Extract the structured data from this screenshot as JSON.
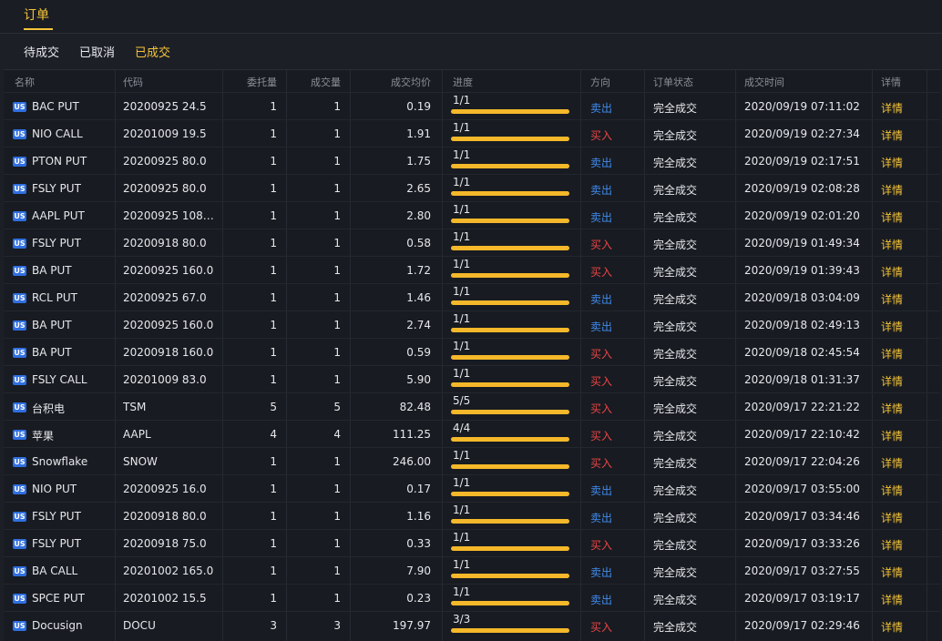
{
  "header": {
    "title": "订单"
  },
  "subtabs": [
    {
      "label": "待成交",
      "active": false
    },
    {
      "label": "已取消",
      "active": false
    },
    {
      "label": "已成交",
      "active": true
    }
  ],
  "table": {
    "columns": [
      "名称",
      "代码",
      "委托量",
      "成交量",
      "成交均价",
      "进度",
      "方向",
      "订单状态",
      "成交时间",
      "详情"
    ],
    "rows": [
      {
        "market": "US",
        "name": "BAC PUT",
        "code": "20200925 24.5",
        "qty": "1",
        "filled": "1",
        "avg": "0.19",
        "progress": "1/1",
        "progress_ratio": 1,
        "dir": "卖出",
        "side": "sell",
        "status": "完全成交",
        "time": "2020/09/19 07:11:02",
        "detail": "详情"
      },
      {
        "market": "US",
        "name": "NIO CALL",
        "code": "20201009 19.5",
        "qty": "1",
        "filled": "1",
        "avg": "1.91",
        "progress": "1/1",
        "progress_ratio": 1,
        "dir": "买入",
        "side": "buy",
        "status": "完全成交",
        "time": "2020/09/19 02:27:34",
        "detail": "详情"
      },
      {
        "market": "US",
        "name": "PTON PUT",
        "code": "20200925 80.0",
        "qty": "1",
        "filled": "1",
        "avg": "1.75",
        "progress": "1/1",
        "progress_ratio": 1,
        "dir": "卖出",
        "side": "sell",
        "status": "完全成交",
        "time": "2020/09/19 02:17:51",
        "detail": "详情"
      },
      {
        "market": "US",
        "name": "FSLY PUT",
        "code": "20200925 80.0",
        "qty": "1",
        "filled": "1",
        "avg": "2.65",
        "progress": "1/1",
        "progress_ratio": 1,
        "dir": "卖出",
        "side": "sell",
        "status": "完全成交",
        "time": "2020/09/19 02:08:28",
        "detail": "详情"
      },
      {
        "market": "US",
        "name": "AAPL PUT",
        "code": "20200925 108....",
        "qty": "1",
        "filled": "1",
        "avg": "2.80",
        "progress": "1/1",
        "progress_ratio": 1,
        "dir": "卖出",
        "side": "sell",
        "status": "完全成交",
        "time": "2020/09/19 02:01:20",
        "detail": "详情"
      },
      {
        "market": "US",
        "name": "FSLY PUT",
        "code": "20200918 80.0",
        "qty": "1",
        "filled": "1",
        "avg": "0.58",
        "progress": "1/1",
        "progress_ratio": 1,
        "dir": "买入",
        "side": "buy",
        "status": "完全成交",
        "time": "2020/09/19 01:49:34",
        "detail": "详情"
      },
      {
        "market": "US",
        "name": "BA PUT",
        "code": "20200925 160.0",
        "qty": "1",
        "filled": "1",
        "avg": "1.72",
        "progress": "1/1",
        "progress_ratio": 1,
        "dir": "买入",
        "side": "buy",
        "status": "完全成交",
        "time": "2020/09/19 01:39:43",
        "detail": "详情"
      },
      {
        "market": "US",
        "name": "RCL PUT",
        "code": "20200925 67.0",
        "qty": "1",
        "filled": "1",
        "avg": "1.46",
        "progress": "1/1",
        "progress_ratio": 1,
        "dir": "卖出",
        "side": "sell",
        "status": "完全成交",
        "time": "2020/09/18 03:04:09",
        "detail": "详情"
      },
      {
        "market": "US",
        "name": "BA PUT",
        "code": "20200925 160.0",
        "qty": "1",
        "filled": "1",
        "avg": "2.74",
        "progress": "1/1",
        "progress_ratio": 1,
        "dir": "卖出",
        "side": "sell",
        "status": "完全成交",
        "time": "2020/09/18 02:49:13",
        "detail": "详情"
      },
      {
        "market": "US",
        "name": "BA PUT",
        "code": "20200918 160.0",
        "qty": "1",
        "filled": "1",
        "avg": "0.59",
        "progress": "1/1",
        "progress_ratio": 1,
        "dir": "买入",
        "side": "buy",
        "status": "完全成交",
        "time": "2020/09/18 02:45:54",
        "detail": "详情"
      },
      {
        "market": "US",
        "name": "FSLY CALL",
        "code": "20201009 83.0",
        "qty": "1",
        "filled": "1",
        "avg": "5.90",
        "progress": "1/1",
        "progress_ratio": 1,
        "dir": "买入",
        "side": "buy",
        "status": "完全成交",
        "time": "2020/09/18 01:31:37",
        "detail": "详情"
      },
      {
        "market": "US",
        "name": "台积电",
        "code": "TSM",
        "qty": "5",
        "filled": "5",
        "avg": "82.48",
        "progress": "5/5",
        "progress_ratio": 1,
        "dir": "买入",
        "side": "buy",
        "status": "完全成交",
        "time": "2020/09/17 22:21:22",
        "detail": "详情"
      },
      {
        "market": "US",
        "name": "苹果",
        "code": "AAPL",
        "qty": "4",
        "filled": "4",
        "avg": "111.25",
        "progress": "4/4",
        "progress_ratio": 1,
        "dir": "买入",
        "side": "buy",
        "status": "完全成交",
        "time": "2020/09/17 22:10:42",
        "detail": "详情"
      },
      {
        "market": "US",
        "name": "Snowflake",
        "code": "SNOW",
        "qty": "1",
        "filled": "1",
        "avg": "246.00",
        "progress": "1/1",
        "progress_ratio": 1,
        "dir": "买入",
        "side": "buy",
        "status": "完全成交",
        "time": "2020/09/17 22:04:26",
        "detail": "详情"
      },
      {
        "market": "US",
        "name": "NIO PUT",
        "code": "20200925 16.0",
        "qty": "1",
        "filled": "1",
        "avg": "0.17",
        "progress": "1/1",
        "progress_ratio": 1,
        "dir": "卖出",
        "side": "sell",
        "status": "完全成交",
        "time": "2020/09/17 03:55:00",
        "detail": "详情"
      },
      {
        "market": "US",
        "name": "FSLY PUT",
        "code": "20200918 80.0",
        "qty": "1",
        "filled": "1",
        "avg": "1.16",
        "progress": "1/1",
        "progress_ratio": 1,
        "dir": "卖出",
        "side": "sell",
        "status": "完全成交",
        "time": "2020/09/17 03:34:46",
        "detail": "详情"
      },
      {
        "market": "US",
        "name": "FSLY PUT",
        "code": "20200918 75.0",
        "qty": "1",
        "filled": "1",
        "avg": "0.33",
        "progress": "1/1",
        "progress_ratio": 1,
        "dir": "买入",
        "side": "buy",
        "status": "完全成交",
        "time": "2020/09/17 03:33:26",
        "detail": "详情"
      },
      {
        "market": "US",
        "name": "BA CALL",
        "code": "20201002 165.0",
        "qty": "1",
        "filled": "1",
        "avg": "7.90",
        "progress": "1/1",
        "progress_ratio": 1,
        "dir": "卖出",
        "side": "sell",
        "status": "完全成交",
        "time": "2020/09/17 03:27:55",
        "detail": "详情"
      },
      {
        "market": "US",
        "name": "SPCE PUT",
        "code": "20201002 15.5",
        "qty": "1",
        "filled": "1",
        "avg": "0.23",
        "progress": "1/1",
        "progress_ratio": 1,
        "dir": "卖出",
        "side": "sell",
        "status": "完全成交",
        "time": "2020/09/17 03:19:17",
        "detail": "详情"
      },
      {
        "market": "US",
        "name": "Docusign",
        "code": "DOCU",
        "qty": "3",
        "filled": "3",
        "avg": "197.97",
        "progress": "3/3",
        "progress_ratio": 1,
        "dir": "买入",
        "side": "buy",
        "status": "完全成交",
        "time": "2020/09/17 02:29:46",
        "detail": "详情"
      }
    ]
  },
  "colors": {
    "accent": "#f5c43a",
    "sell": "#3f8cf0",
    "buy": "#ec4545",
    "badge": "#2f6fe0",
    "progress": "#f5b82a"
  }
}
